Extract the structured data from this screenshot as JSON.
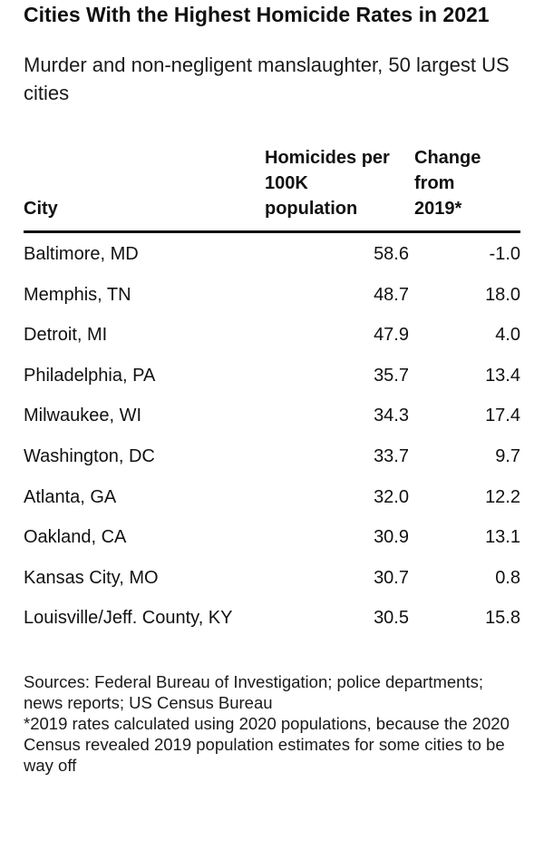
{
  "chart_data": {
    "type": "table",
    "title": "Cities With the Highest Homicide Rates in 2021",
    "subtitle": "Murder and non-negligent manslaughter, 50 largest US cities",
    "columns": {
      "city": "City",
      "rate": "Homicides per 100K population",
      "change": "Change from 2019*"
    },
    "rows": [
      {
        "city": "Baltimore, MD",
        "rate": "58.6",
        "change": "-1.0"
      },
      {
        "city": "Memphis, TN",
        "rate": "48.7",
        "change": "18.0"
      },
      {
        "city": "Detroit, MI",
        "rate": "47.9",
        "change": "4.0"
      },
      {
        "city": "Philadelphia, PA",
        "rate": "35.7",
        "change": "13.4"
      },
      {
        "city": "Milwaukee, WI",
        "rate": "34.3",
        "change": "17.4"
      },
      {
        "city": "Washington, DC",
        "rate": "33.7",
        "change": "9.7"
      },
      {
        "city": "Atlanta, GA",
        "rate": "32.0",
        "change": "12.2"
      },
      {
        "city": "Oakland, CA",
        "rate": "30.9",
        "change": "13.1"
      },
      {
        "city": "Kansas City, MO",
        "rate": "30.7",
        "change": "0.8"
      },
      {
        "city": "Louisville/Jeff. County, KY",
        "rate": "30.5",
        "change": "15.8"
      }
    ],
    "sources": "Sources: Federal Bureau of Investigation; police departments; news reports; US Census Bureau",
    "note": "*2019 rates calculated using 2020 populations, because the 2020 Census revealed 2019 population estimates for some cities to be way off"
  }
}
